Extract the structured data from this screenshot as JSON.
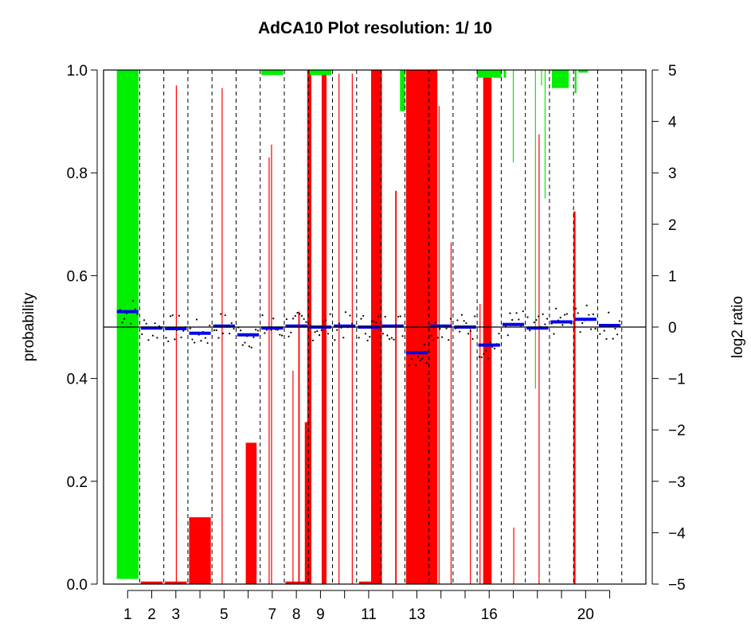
{
  "chart_data": {
    "type": "bar",
    "title": "AdCA10  Plot resolution: 1/ 10",
    "ylabel": "probability",
    "y2label": "log2 ratio",
    "xlabel": "",
    "ylim": [
      0,
      1
    ],
    "y2lim": [
      -5,
      5
    ],
    "yticks": [
      "0.0",
      "0.2",
      "0.4",
      "0.6",
      "0.8",
      "1.0"
    ],
    "y2ticks": [
      "−5",
      "−4",
      "−3",
      "−2",
      "−1",
      "0",
      "1",
      "2",
      "3",
      "4",
      "5"
    ],
    "xtick_labels": [
      "1",
      "2",
      "3",
      "5",
      "7",
      "8",
      "9",
      "11",
      "13",
      "16",
      "20"
    ],
    "chromosome_boundaries": [
      1.5,
      2.5,
      3.5,
      4.5,
      5.5,
      6.5,
      7.5,
      8.5,
      9.5,
      10.5,
      11.5,
      12.5,
      13.5,
      14.5,
      15.5,
      16.5,
      17.5,
      18.5,
      19.5,
      20.5,
      21.5
    ],
    "x_range": [
      0,
      22.5
    ],
    "grid": false,
    "series": [
      {
        "name": "",
        "color": "#00ee00",
        "kind": "loss probability (bars hang from top)",
        "bars": [
          {
            "x0": 0.55,
            "x1": 1.45,
            "p": 0.99
          },
          {
            "x0": 6.55,
            "x1": 7.45,
            "p": 0.01
          },
          {
            "x0": 8.55,
            "x1": 9.45,
            "p": 0.01
          },
          {
            "x0": 12.3,
            "x1": 12.5,
            "p": 0.08
          },
          {
            "x0": 15.5,
            "x1": 16.5,
            "p": 0.015
          },
          {
            "x0": 16.6,
            "x1": 16.7,
            "p": 0.015
          },
          {
            "x0": 16.98,
            "x1": 17.02,
            "p": 0.18
          },
          {
            "x0": 17.9,
            "x1": 17.94,
            "p": 0.62
          },
          {
            "x0": 18.15,
            "x1": 18.19,
            "p": 0.03
          },
          {
            "x0": 18.3,
            "x1": 18.34,
            "p": 0.25
          },
          {
            "x0": 18.6,
            "x1": 19.3,
            "p": 0.035
          },
          {
            "x0": 19.55,
            "x1": 19.62,
            "p": 0.045
          },
          {
            "x0": 19.7,
            "x1": 20.1,
            "p": 0.005
          }
        ]
      },
      {
        "name": "",
        "color": "#ff0000",
        "kind": "gain probability (bars rise from bottom)",
        "bars": [
          {
            "x0": 1.55,
            "x1": 2.45,
            "p": 0.005
          },
          {
            "x0": 2.55,
            "x1": 3.45,
            "p": 0.005
          },
          {
            "x0": 3.0,
            "x1": 3.04,
            "p": 0.97
          },
          {
            "x0": 3.55,
            "x1": 4.45,
            "p": 0.13
          },
          {
            "x0": 4.9,
            "x1": 4.94,
            "p": 0.965
          },
          {
            "x0": 5.9,
            "x1": 6.35,
            "p": 0.275
          },
          {
            "x0": 6.85,
            "x1": 6.89,
            "p": 0.83
          },
          {
            "x0": 6.95,
            "x1": 6.99,
            "p": 0.855
          },
          {
            "x0": 7.55,
            "x1": 8.45,
            "p": 0.005
          },
          {
            "x0": 7.84,
            "x1": 7.88,
            "p": 0.415
          },
          {
            "x0": 8.08,
            "x1": 8.14,
            "p": 0.53
          },
          {
            "x0": 8.35,
            "x1": 8.5,
            "p": 0.315
          },
          {
            "x0": 8.45,
            "x1": 8.62,
            "p": 1.0
          },
          {
            "x0": 9.05,
            "x1": 9.25,
            "p": 0.993
          },
          {
            "x0": 9.75,
            "x1": 9.79,
            "p": 0.993
          },
          {
            "x0": 10.3,
            "x1": 10.34,
            "p": 0.993
          },
          {
            "x0": 10.6,
            "x1": 11.2,
            "p": 0.005
          },
          {
            "x0": 11.1,
            "x1": 11.55,
            "p": 1.0
          },
          {
            "x0": 12.1,
            "x1": 12.16,
            "p": 0.765
          },
          {
            "x0": 12.55,
            "x1": 13.85,
            "p": 1.0
          },
          {
            "x0": 13.9,
            "x1": 13.94,
            "p": 0.93
          },
          {
            "x0": 14.4,
            "x1": 14.44,
            "p": 0.665
          },
          {
            "x0": 15.2,
            "x1": 15.24,
            "p": 0.5
          },
          {
            "x0": 15.6,
            "x1": 15.64,
            "p": 0.545
          },
          {
            "x0": 15.75,
            "x1": 16.1,
            "p": 1.0
          },
          {
            "x0": 17.0,
            "x1": 17.04,
            "p": 0.11
          },
          {
            "x0": 18.05,
            "x1": 18.09,
            "p": 0.875
          },
          {
            "x0": 19.5,
            "x1": 19.58,
            "p": 0.725
          }
        ]
      }
    ],
    "segments_log2": [
      {
        "x0": 0.55,
        "x1": 1.45,
        "y": 0.3
      },
      {
        "x0": 1.55,
        "x1": 2.45,
        "y": -0.02
      },
      {
        "x0": 2.55,
        "x1": 3.45,
        "y": -0.03
      },
      {
        "x0": 3.55,
        "x1": 4.45,
        "y": -0.12
      },
      {
        "x0": 4.55,
        "x1": 5.45,
        "y": 0.02
      },
      {
        "x0": 5.55,
        "x1": 6.45,
        "y": -0.15
      },
      {
        "x0": 6.55,
        "x1": 7.45,
        "y": -0.02
      },
      {
        "x0": 7.55,
        "x1": 8.45,
        "y": 0.02
      },
      {
        "x0": 8.55,
        "x1": 9.45,
        "y": 0.0
      },
      {
        "x0": 9.55,
        "x1": 10.45,
        "y": 0.02
      },
      {
        "x0": 10.55,
        "x1": 11.45,
        "y": 0.0
      },
      {
        "x0": 11.55,
        "x1": 12.45,
        "y": 0.02
      },
      {
        "x0": 12.55,
        "x1": 13.45,
        "y": -0.5
      },
      {
        "x0": 13.55,
        "x1": 14.45,
        "y": 0.02
      },
      {
        "x0": 14.55,
        "x1": 15.45,
        "y": 0.0
      },
      {
        "x0": 15.55,
        "x1": 16.45,
        "y": -0.35
      },
      {
        "x0": 16.55,
        "x1": 17.45,
        "y": 0.05
      },
      {
        "x0": 17.55,
        "x1": 18.45,
        "y": -0.02
      },
      {
        "x0": 18.55,
        "x1": 19.45,
        "y": 0.1
      },
      {
        "x0": 19.55,
        "x1": 20.45,
        "y": 0.15
      },
      {
        "x0": 20.55,
        "x1": 21.45,
        "y": 0.03
      }
    ],
    "horizontal_reference_line_log2": 0,
    "colors": {
      "loss": "#00ee00",
      "gain": "#ff0000",
      "segment": "#0000ee",
      "points": "#000000"
    }
  }
}
